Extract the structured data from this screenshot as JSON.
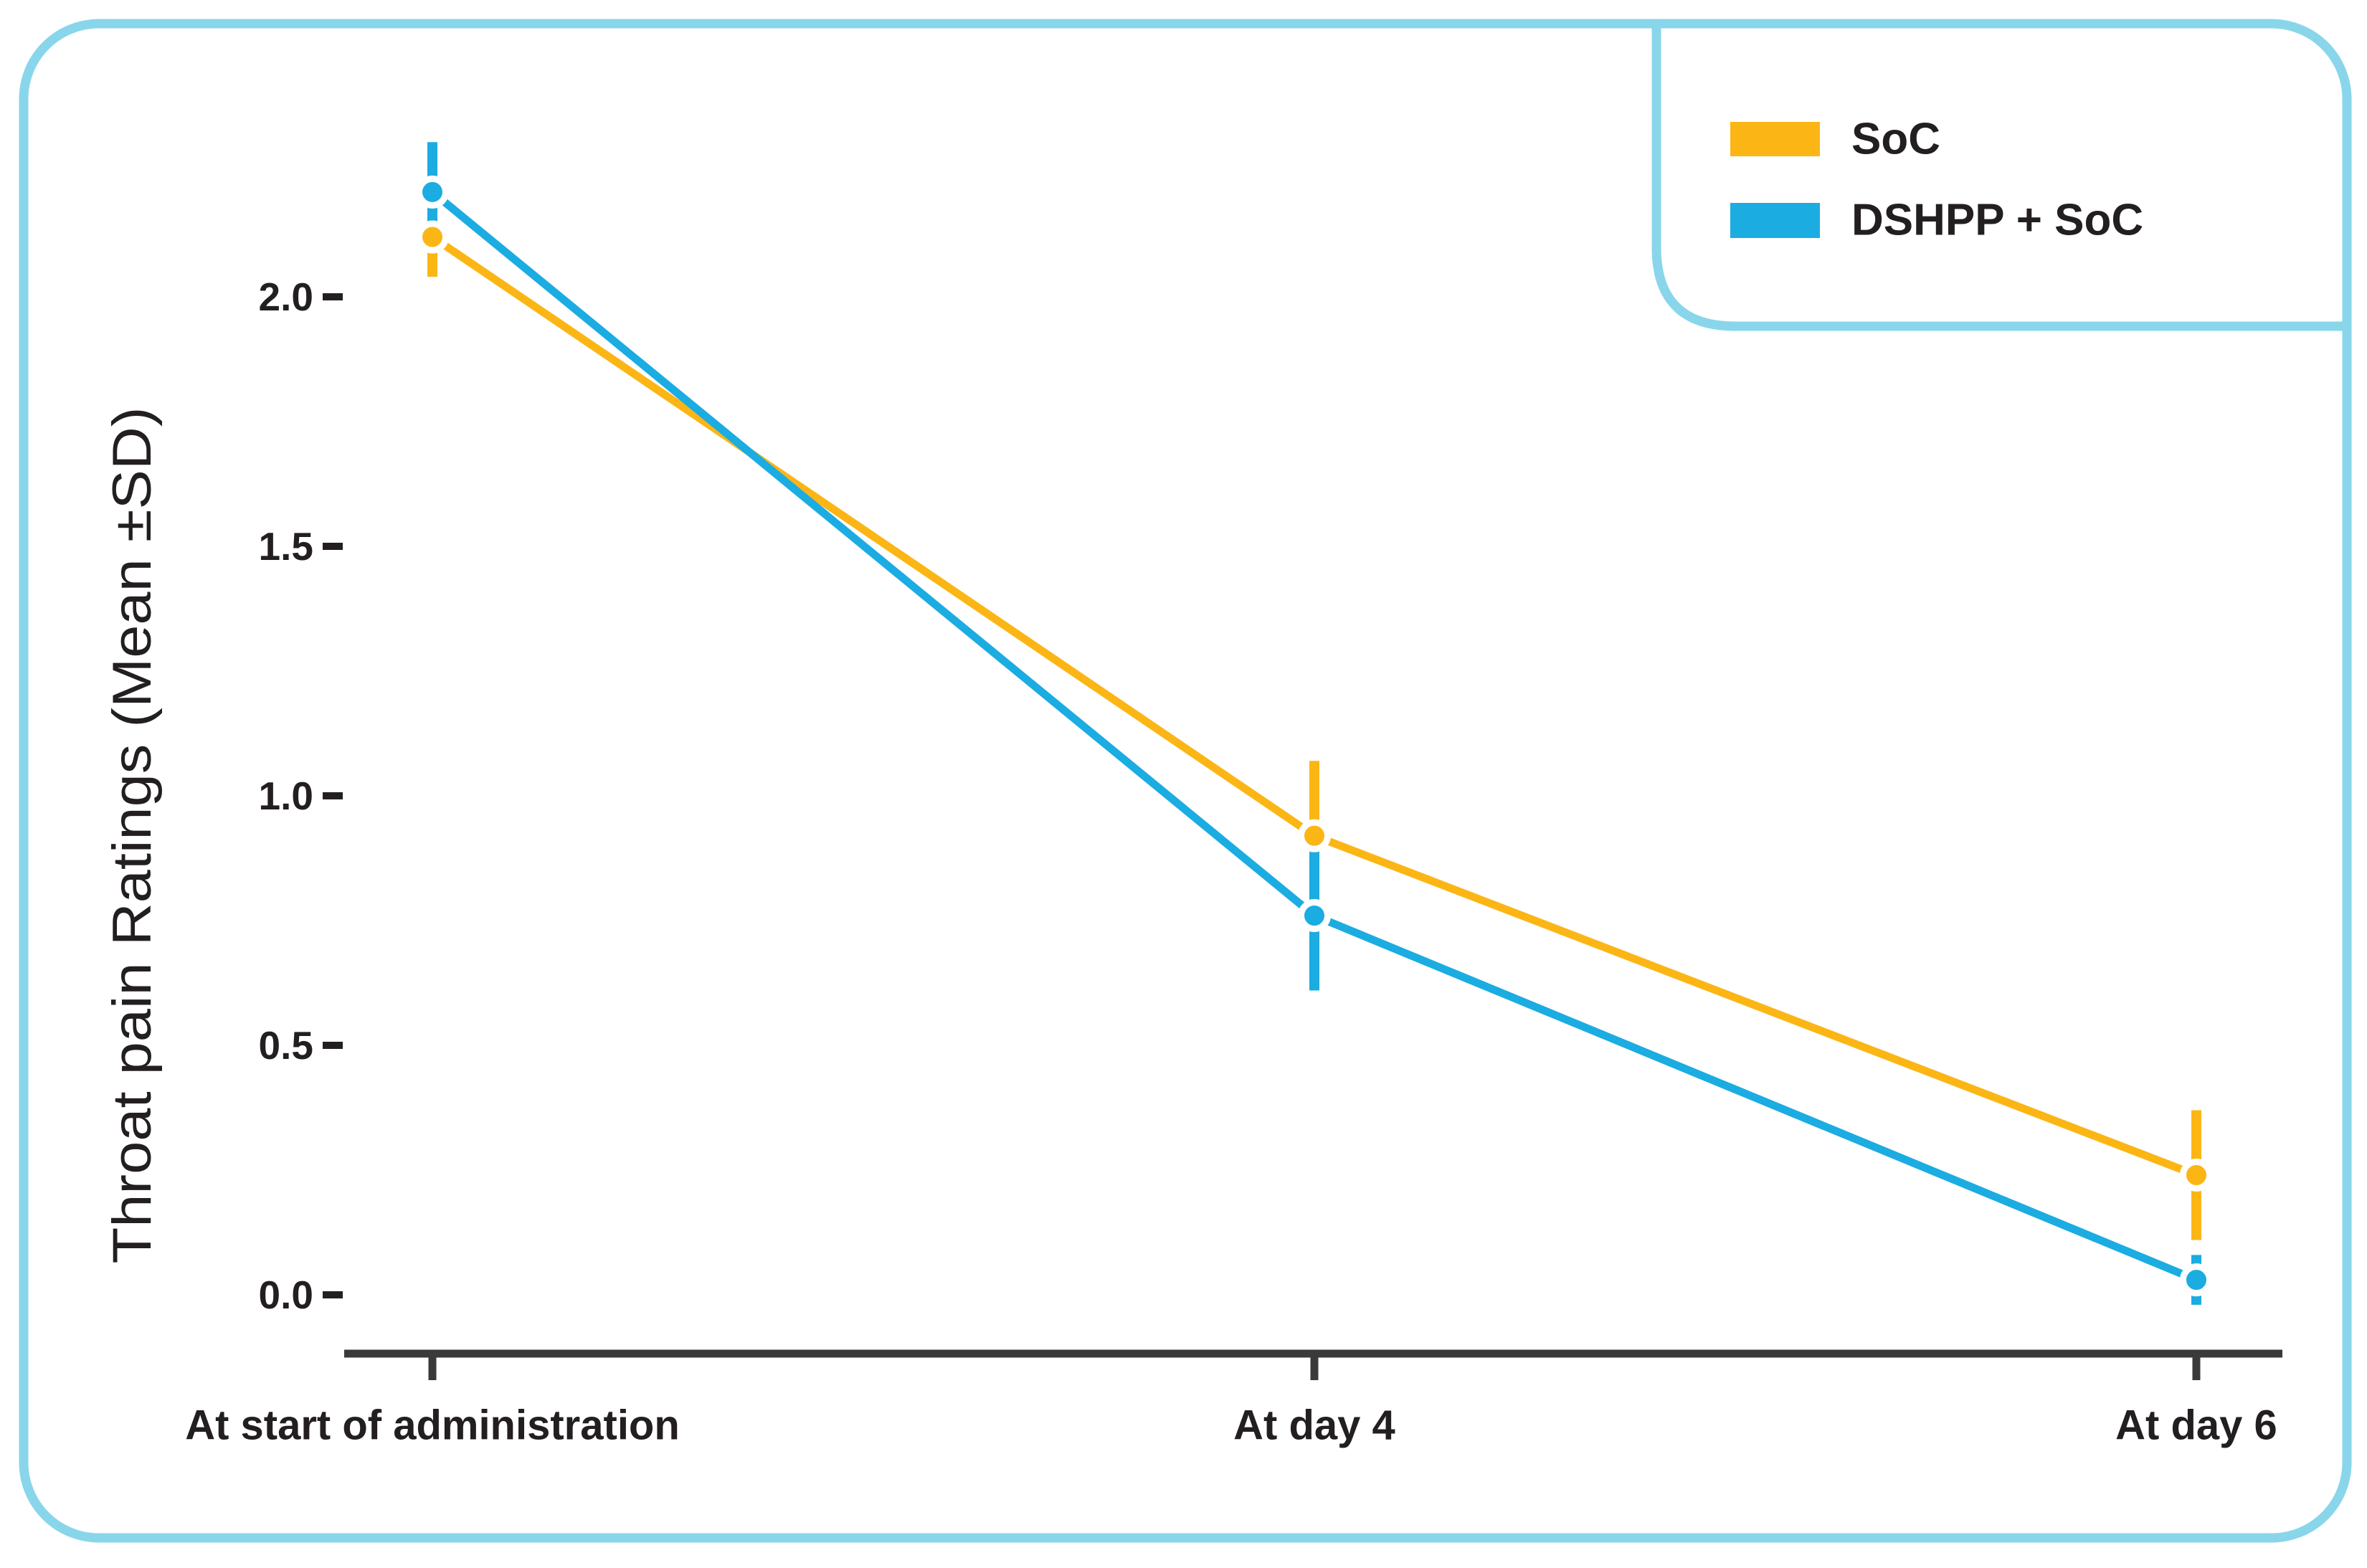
{
  "figure": {
    "border_color": "#89D6EB",
    "background_color": "#FFFFFF",
    "text_color": "#231F20",
    "axis_color": "#3A3A3A"
  },
  "legend": {
    "position": "top-right",
    "items": [
      {
        "label": "SoC",
        "color": "#FBB616"
      },
      {
        "label": "DSHPP + SoC",
        "color": "#1BACE2"
      }
    ]
  },
  "chart_data": {
    "type": "line",
    "title": "",
    "xlabel": "",
    "ylabel": "Throat pain Ratings (Mean ±SD)",
    "categories": [
      "At start of administration",
      "At day 4",
      "At day 6"
    ],
    "yticks": [
      0.0,
      0.5,
      1.0,
      1.5,
      2.0
    ],
    "ytick_labels": [
      "0.0",
      "0.5",
      "1.0",
      "1.5",
      "2.0"
    ],
    "ylim": [
      -0.15,
      2.45
    ],
    "grid": false,
    "error_bars": true,
    "legend_position": "top-right",
    "series": [
      {
        "name": "SoC",
        "color": "#FBB616",
        "values": [
          2.12,
          0.92,
          0.24
        ],
        "sd": [
          0.08,
          0.15,
          0.13
        ]
      },
      {
        "name": "DSHPP + SoC",
        "color": "#1BACE2",
        "values": [
          2.21,
          0.76,
          0.03
        ],
        "sd": [
          0.1,
          0.15,
          0.05
        ]
      }
    ]
  }
}
